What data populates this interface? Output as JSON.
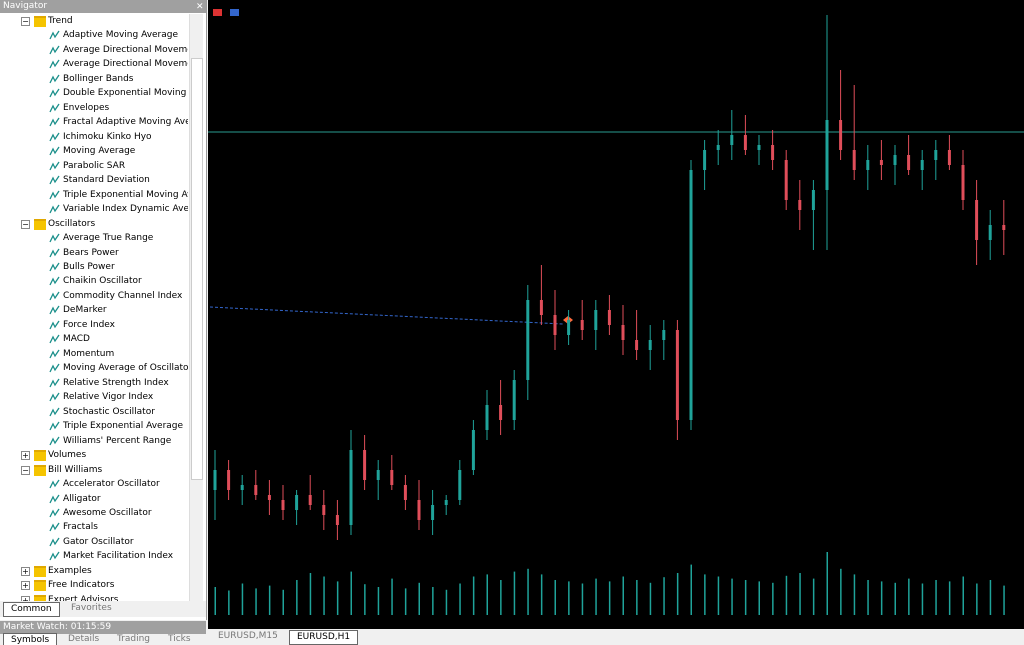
{
  "navigator": {
    "title": "Navigator",
    "groups": [
      {
        "name": "Trend",
        "expanded": true,
        "items": [
          "Adaptive Moving Average",
          "Average Directional Movement Index",
          "Average Directional Movement Index Wilder",
          "Bollinger Bands",
          "Double Exponential Moving Average",
          "Envelopes",
          "Fractal Adaptive Moving Average",
          "Ichimoku Kinko Hyo",
          "Moving Average",
          "Parabolic SAR",
          "Standard Deviation",
          "Triple Exponential Moving Average",
          "Variable Index Dynamic Average"
        ]
      },
      {
        "name": "Oscillators",
        "expanded": true,
        "items": [
          "Average True Range",
          "Bears Power",
          "Bulls Power",
          "Chaikin Oscillator",
          "Commodity Channel Index",
          "DeMarker",
          "Force Index",
          "MACD",
          "Momentum",
          "Moving Average of Oscillator",
          "Relative Strength Index",
          "Relative Vigor Index",
          "Stochastic Oscillator",
          "Triple Exponential Average",
          "Williams' Percent Range"
        ]
      },
      {
        "name": "Volumes",
        "expanded": false,
        "items": []
      },
      {
        "name": "Bill Williams",
        "expanded": true,
        "items": [
          "Accelerator Oscillator",
          "Alligator",
          "Awesome Oscillator",
          "Fractals",
          "Gator Oscillator",
          "Market Facilitation Index"
        ]
      },
      {
        "name": "Examples",
        "expanded": false,
        "items": []
      },
      {
        "name": "Free Indicators",
        "expanded": false,
        "items": []
      }
    ],
    "next_section": "Expert Advisors",
    "tabs": [
      "Common",
      "Favorites"
    ]
  },
  "market_watch": {
    "title": "Market Watch: 01:15:59",
    "tabs": [
      "Symbols",
      "Details",
      "Trading",
      "Ticks"
    ]
  },
  "chart": {
    "up_color": "#1fa39a",
    "down_color": "#e04e5a",
    "ylim": [
      0,
      120
    ],
    "volume_lim": [
      0,
      100
    ],
    "price_line": 93.6,
    "candles": [
      [
        22,
        30,
        16,
        26
      ],
      [
        26,
        28,
        20,
        22
      ],
      [
        22,
        25,
        19,
        23
      ],
      [
        23,
        26,
        20,
        21
      ],
      [
        21,
        24,
        17,
        20
      ],
      [
        20,
        23,
        16,
        18
      ],
      [
        18,
        22,
        15,
        21
      ],
      [
        21,
        25,
        18,
        19
      ],
      [
        19,
        22,
        14,
        17
      ],
      [
        17,
        20,
        12,
        15
      ],
      [
        15,
        34,
        13,
        30
      ],
      [
        30,
        33,
        22,
        24
      ],
      [
        24,
        28,
        20,
        26
      ],
      [
        26,
        29,
        22,
        23
      ],
      [
        23,
        25,
        18,
        20
      ],
      [
        20,
        24,
        14,
        16
      ],
      [
        16,
        22,
        13,
        19
      ],
      [
        19,
        21,
        17,
        20
      ],
      [
        20,
        28,
        19,
        26
      ],
      [
        26,
        36,
        25,
        34
      ],
      [
        34,
        42,
        32,
        39
      ],
      [
        39,
        44,
        33,
        36
      ],
      [
        36,
        46,
        34,
        44
      ],
      [
        44,
        63,
        40,
        60
      ],
      [
        60,
        67,
        55,
        57
      ],
      [
        57,
        62,
        50,
        53
      ],
      [
        53,
        58,
        51,
        56
      ],
      [
        56,
        60,
        52,
        54
      ],
      [
        54,
        60,
        50,
        58
      ],
      [
        58,
        61,
        53,
        55
      ],
      [
        55,
        59,
        49,
        52
      ],
      [
        52,
        58,
        48,
        50
      ],
      [
        50,
        55,
        46,
        52
      ],
      [
        52,
        56,
        48,
        54
      ],
      [
        54,
        56,
        32,
        36
      ],
      [
        36,
        88,
        34,
        86
      ],
      [
        86,
        92,
        82,
        90
      ],
      [
        90,
        94,
        87,
        91
      ],
      [
        91,
        98,
        88,
        93
      ],
      [
        93,
        97,
        89,
        90
      ],
      [
        90,
        93,
        87,
        91
      ],
      [
        91,
        94,
        86,
        88
      ],
      [
        88,
        90,
        78,
        80
      ],
      [
        80,
        84,
        74,
        78
      ],
      [
        78,
        84,
        70,
        82
      ],
      [
        82,
        117,
        70,
        96
      ],
      [
        96,
        106,
        88,
        90
      ],
      [
        90,
        103,
        84,
        86
      ],
      [
        86,
        91,
        82,
        88
      ],
      [
        88,
        92,
        84,
        87
      ],
      [
        87,
        91,
        83,
        89
      ],
      [
        89,
        93,
        85,
        86
      ],
      [
        86,
        90,
        82,
        88
      ],
      [
        88,
        92,
        84,
        90
      ],
      [
        90,
        93,
        86,
        87
      ],
      [
        87,
        90,
        78,
        80
      ],
      [
        80,
        84,
        67,
        72
      ],
      [
        72,
        78,
        68,
        75
      ],
      [
        75,
        80,
        69,
        74
      ]
    ],
    "volumes": [
      40,
      35,
      45,
      38,
      42,
      36,
      50,
      60,
      55,
      48,
      62,
      44,
      40,
      52,
      38,
      46,
      40,
      36,
      45,
      55,
      58,
      50,
      62,
      66,
      58,
      50,
      48,
      45,
      52,
      48,
      55,
      50,
      46,
      54,
      60,
      72,
      58,
      55,
      52,
      50,
      48,
      46,
      56,
      60,
      52,
      90,
      66,
      58,
      50,
      48,
      46,
      52,
      45,
      50,
      48,
      55,
      45,
      50,
      42
    ],
    "tabs": [
      "EURUSD,M15",
      "EURUSD,H1"
    ],
    "active_tab": 1
  }
}
